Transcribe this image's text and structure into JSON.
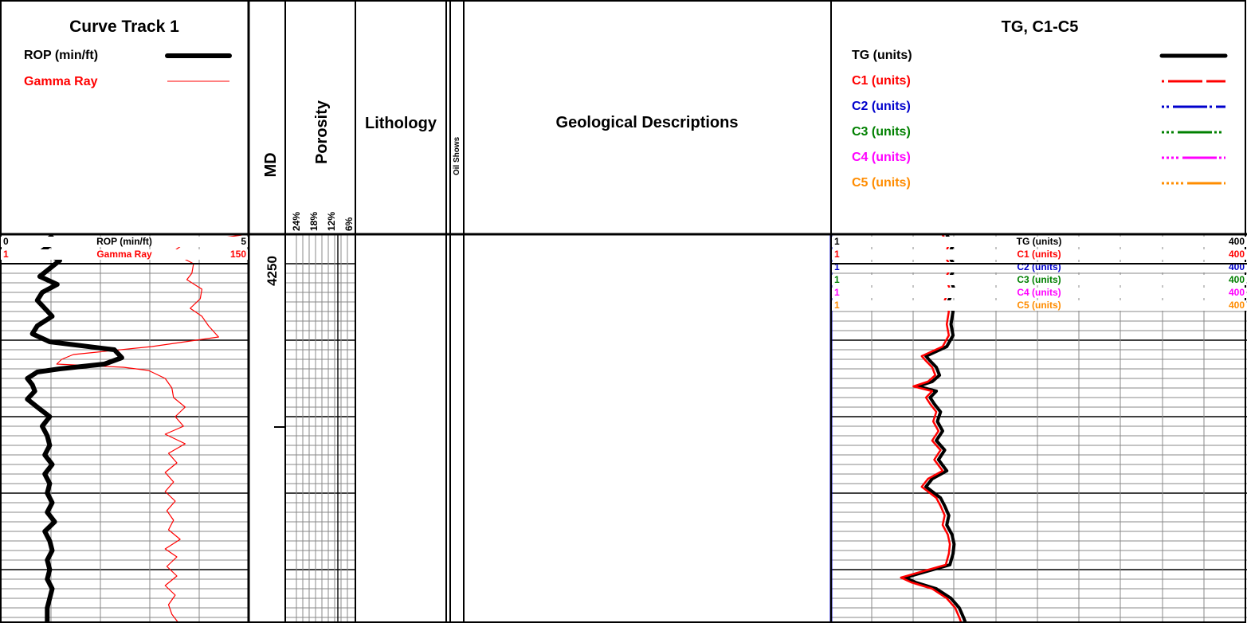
{
  "curve_track": {
    "title": "Curve Track 1",
    "rop_label": "ROP (min/ft)",
    "gamma_label": "Gamma Ray",
    "rop_scale": {
      "min": "0",
      "label": "ROP (min/ft)",
      "max": "5"
    },
    "gamma_scale": {
      "min": "1",
      "label": "Gamma Ray",
      "max": "150"
    }
  },
  "md_track": {
    "title": "MD",
    "depth_label": "4250"
  },
  "porosity_track": {
    "title": "Porosity",
    "ticks": [
      "24%",
      "18%",
      "12%",
      "6%"
    ]
  },
  "lithology_track": {
    "title": "Lithology"
  },
  "oil_shows_track": {
    "title": "Oil Shows"
  },
  "geo_track": {
    "title": "Geological Descriptions"
  },
  "gas_track": {
    "title": "TG, C1-C5",
    "legend": [
      {
        "label": "TG (units)",
        "color": "#000000"
      },
      {
        "label": "C1 (units)",
        "color": "#ff0000"
      },
      {
        "label": "C2 (units)",
        "color": "#0000cc"
      },
      {
        "label": "C3 (units)",
        "color": "#008000"
      },
      {
        "label": "C4 (units)",
        "color": "#ff00ff"
      },
      {
        "label": "C5 (units)",
        "color": "#ff8c00"
      }
    ],
    "scales": [
      {
        "min": "1",
        "label": "TG (units)",
        "max": "400",
        "color": "#000000"
      },
      {
        "min": "1",
        "label": "C1 (units)",
        "max": "400",
        "color": "#ff0000"
      },
      {
        "min": "1",
        "label": "C2 (units)",
        "max": "400",
        "color": "#0000cc"
      },
      {
        "min": "1",
        "label": "C3 (units)",
        "max": "400",
        "color": "#008000"
      },
      {
        "min": "1",
        "label": "C4 (units)",
        "max": "400",
        "color": "#ff00ff"
      },
      {
        "min": "1",
        "label": "C5 (units)",
        "max": "400",
        "color": "#ff8c00"
      }
    ]
  },
  "chart_data": {
    "type": "line",
    "depth_top_label": "4250",
    "depth_unit_note": "",
    "rop": {
      "name": "ROP (min/ft)",
      "color": "#000000",
      "xlim": [
        0,
        5
      ],
      "depth": [
        0,
        8,
        20,
        32,
        42,
        52,
        62,
        72,
        82,
        92,
        102,
        114,
        124,
        134,
        144,
        154,
        162,
        168,
        172,
        180,
        188,
        196,
        206,
        216,
        228,
        240,
        252,
        264,
        276,
        288,
        300,
        312,
        324,
        336,
        348,
        360,
        372,
        384,
        396,
        408,
        420,
        432,
        444,
        456,
        468,
        480,
        487
      ],
      "values": [
        1.0,
        1.1,
        0.85,
        1.2,
        1.0,
        0.8,
        1.15,
        0.85,
        0.75,
        0.9,
        1.05,
        0.75,
        0.65,
        1.0,
        2.3,
        2.45,
        2.1,
        1.2,
        0.75,
        0.55,
        0.65,
        0.7,
        0.55,
        0.75,
        1.0,
        0.85,
        0.95,
        1.0,
        0.9,
        1.05,
        0.9,
        1.0,
        0.95,
        1.05,
        0.95,
        1.1,
        0.9,
        1.0,
        1.05,
        0.95,
        1.0,
        0.95,
        1.05,
        1.0,
        0.95,
        0.95,
        0.95
      ]
    },
    "gamma_ray": {
      "name": "Gamma Ray",
      "color": "#ff0000",
      "xlim": [
        1,
        150
      ],
      "depth": [
        0,
        10,
        22,
        36,
        48,
        56,
        68,
        80,
        92,
        102,
        114,
        128,
        140,
        150,
        156,
        162,
        166,
        170,
        180,
        192,
        204,
        216,
        228,
        240,
        250,
        262,
        274,
        286,
        298,
        310,
        322,
        334,
        346,
        358,
        370,
        382,
        394,
        404,
        416,
        428,
        440,
        452,
        464,
        476,
        487
      ],
      "values": [
        146,
        112,
        104,
        117,
        116,
        113,
        122,
        121,
        115,
        122,
        126,
        132,
        92,
        45,
        38,
        35,
        75,
        90,
        100,
        104,
        105,
        112,
        106,
        111,
        100,
        112,
        102,
        107,
        100,
        105,
        100,
        106,
        101,
        105,
        102,
        109,
        100,
        107,
        101,
        107,
        100,
        106,
        102,
        104,
        108
      ]
    },
    "gas": {
      "xlim": [
        1,
        400
      ],
      "depth": [
        0,
        12,
        26,
        40,
        54,
        68,
        82,
        96,
        112,
        126,
        140,
        146,
        152,
        158,
        166,
        176,
        184,
        190,
        196,
        204,
        212,
        222,
        234,
        246,
        258,
        270,
        282,
        296,
        306,
        316,
        322,
        330,
        340,
        352,
        364,
        376,
        388,
        400,
        414,
        424,
        430,
        436,
        444,
        456,
        468,
        480,
        487
      ],
      "series": [
        {
          "name": "TG (units)",
          "color": "#000000",
          "values": [
            112,
            118,
            114,
            120,
            115,
            119,
            114,
            118,
            116,
            118,
            112,
            102,
            92,
            96,
            102,
            105,
            98,
            84,
            102,
            96,
            100,
            106,
            103,
            108,
            102,
            110,
            104,
            112,
            98,
            92,
            98,
            106,
            110,
            114,
            112,
            117,
            119,
            118,
            115,
            88,
            72,
            82,
            102,
            116,
            124,
            128,
            130
          ]
        },
        {
          "name": "C1 (units)",
          "color": "#ff0000",
          "values": [
            108,
            114,
            110,
            116,
            111,
            115,
            110,
            114,
            112,
            114,
            108,
            98,
            88,
            92,
            98,
            101,
            94,
            80,
            98,
            92,
            96,
            102,
            99,
            104,
            98,
            106,
            100,
            108,
            94,
            88,
            94,
            102,
            106,
            110,
            108,
            113,
            115,
            114,
            111,
            84,
            68,
            78,
            98,
            112,
            120,
            124,
            126
          ]
        },
        {
          "name": "C2 (units)",
          "color": "#0000cc",
          "values": [
            1,
            1,
            1,
            1,
            1,
            1,
            1,
            1,
            1,
            1,
            1,
            1,
            1,
            1,
            1,
            1,
            1,
            1,
            1,
            1,
            1,
            1,
            1,
            1,
            1,
            1,
            1,
            1,
            1,
            1,
            1,
            1,
            1,
            1,
            1,
            1,
            1,
            1,
            1,
            1,
            1,
            1,
            1,
            1,
            1,
            1,
            1
          ]
        }
      ]
    }
  }
}
